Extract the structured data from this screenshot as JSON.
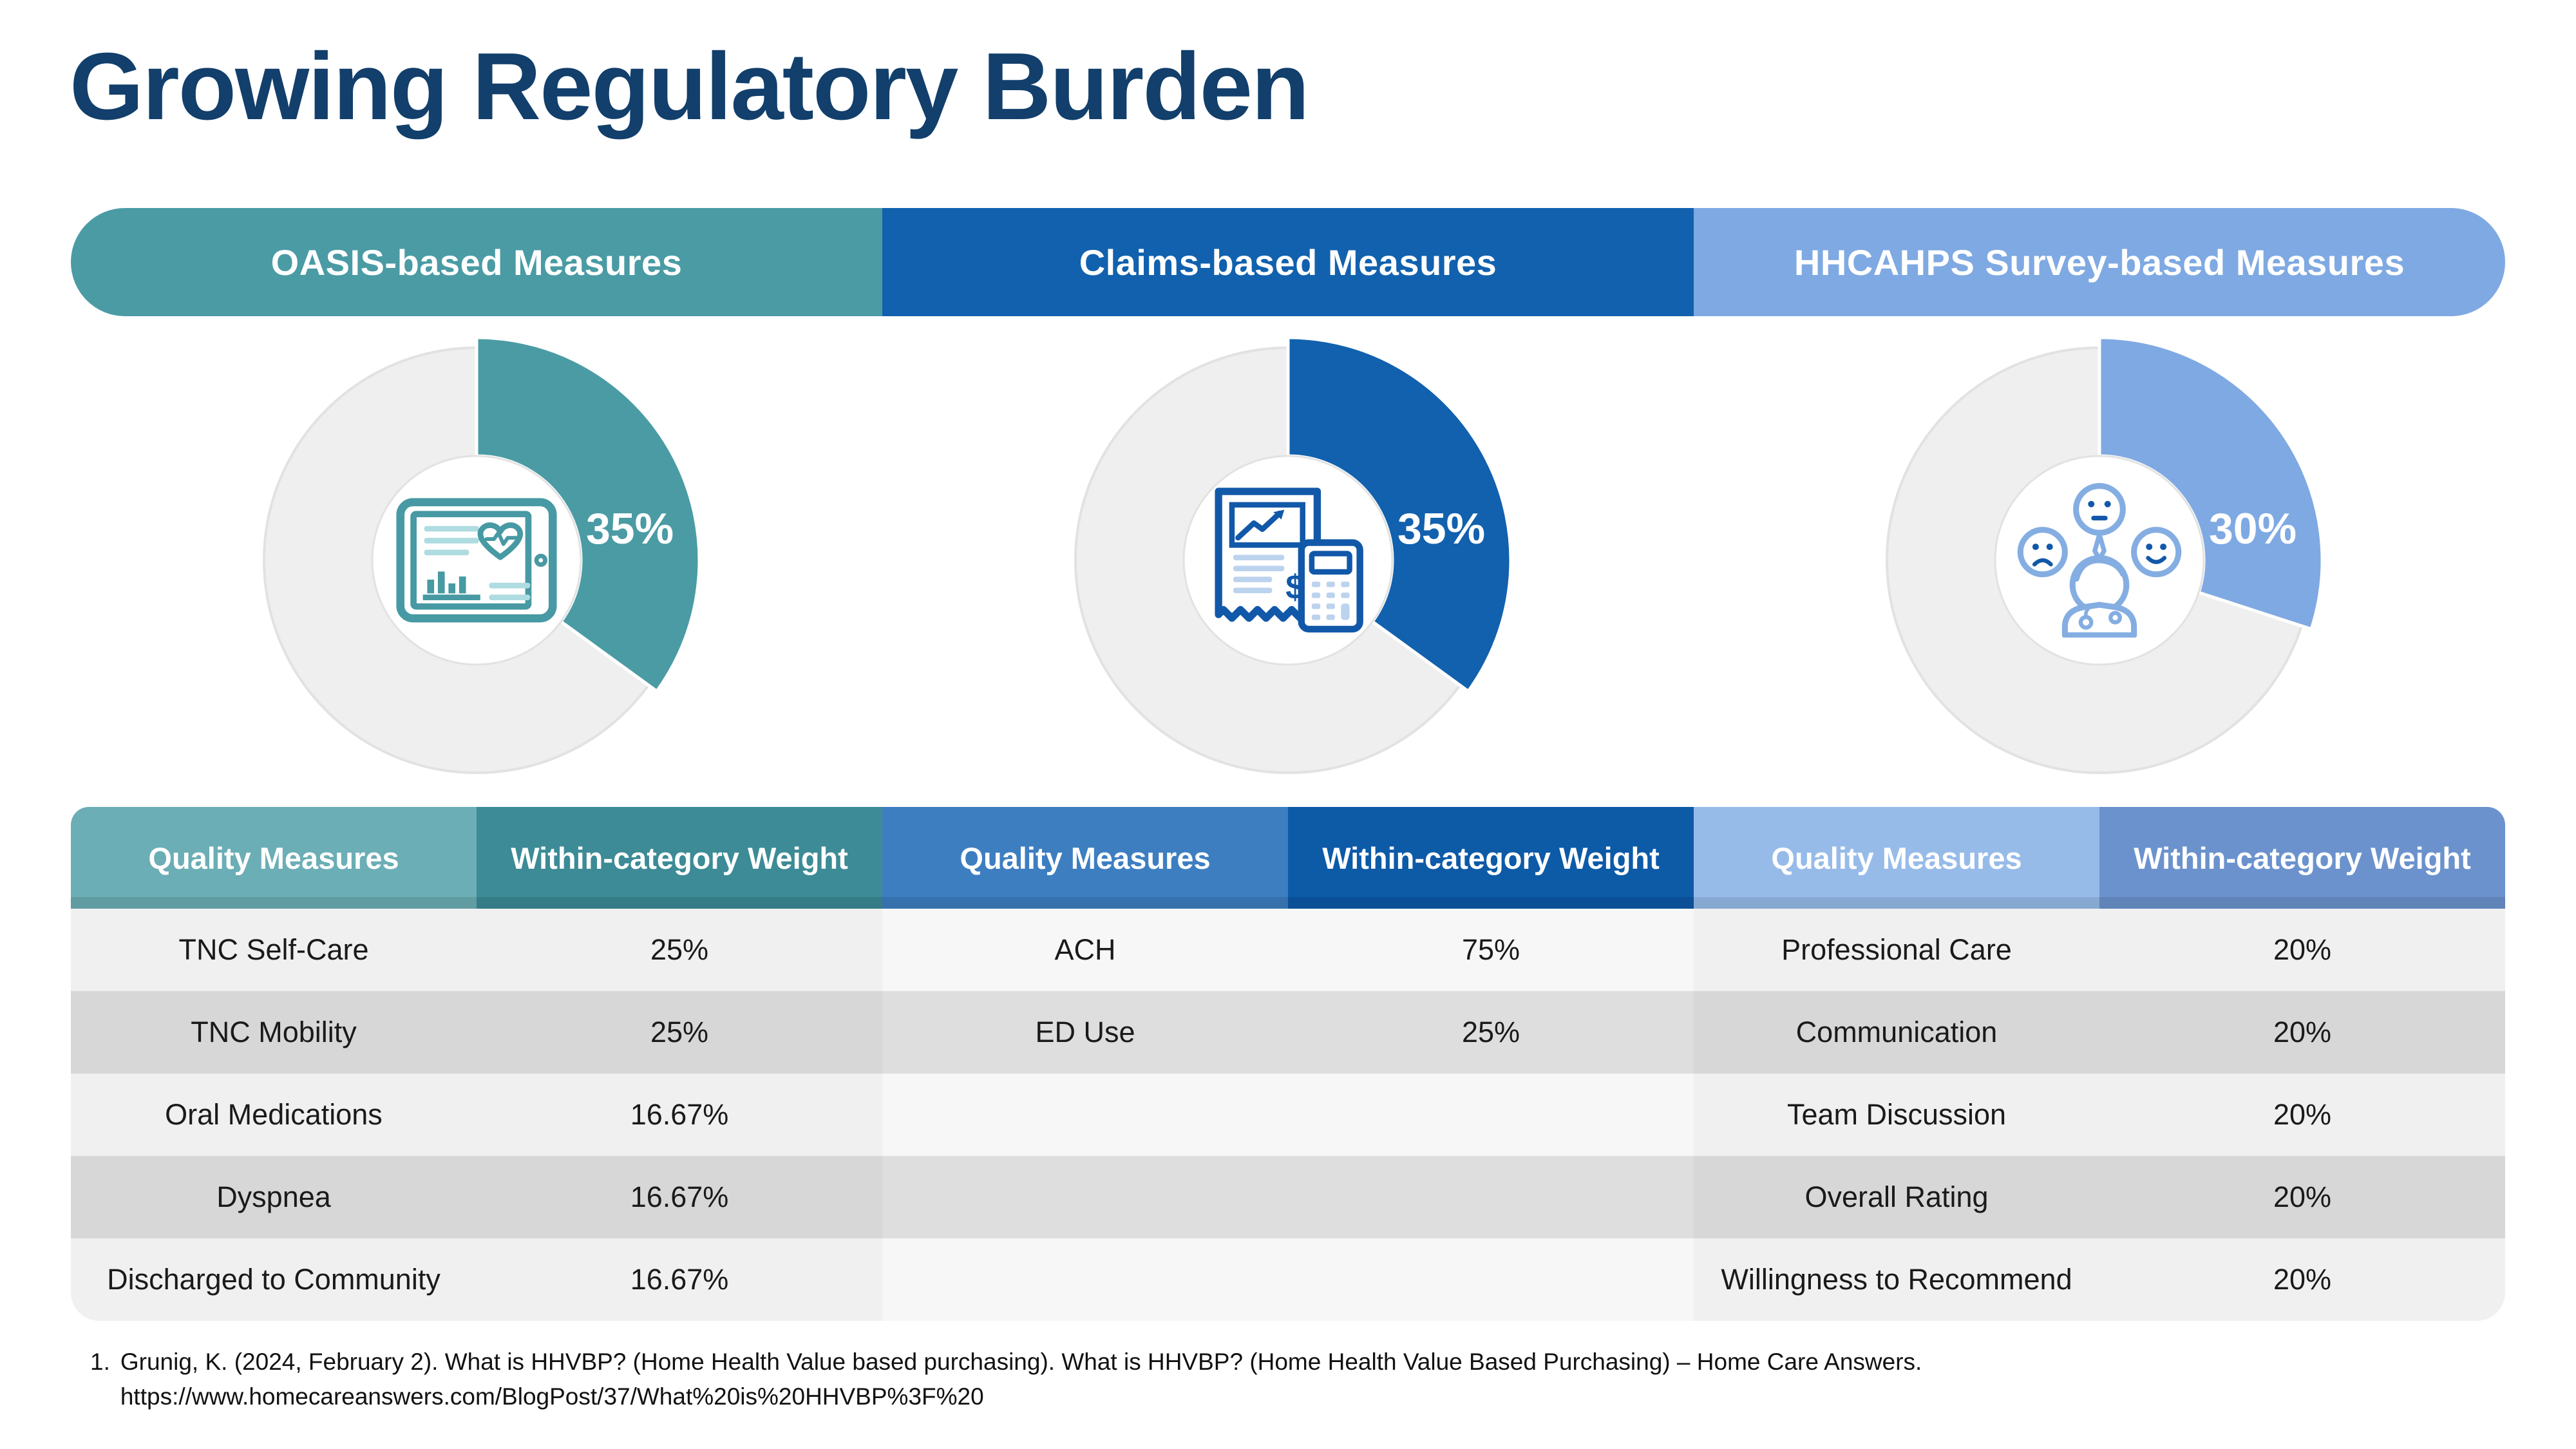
{
  "title": "Growing Regulatory Burden",
  "title_color": "#123F6B",
  "sections": [
    {
      "header": "OASIS-based Measures",
      "icon": "health-dashboard-tablet-icon",
      "percent": 35,
      "percent_label": "35%",
      "colors": {
        "bar": "#4A9BA4",
        "col1": "#6CAEB5",
        "col2": "#3C8B96",
        "accent": "#4A9BA4",
        "row_light": "#F0F0F0",
        "row_dark": "#D7D7D7"
      },
      "columns": [
        "Quality Measures",
        "Within-category Weight"
      ],
      "rows": [
        [
          "TNC Self-Care",
          "25%"
        ],
        [
          "TNC Mobility",
          "25%"
        ],
        [
          "Oral Medications",
          "16.67%"
        ],
        [
          "Dyspnea",
          "16.67%"
        ],
        [
          "Discharged to Community",
          "16.67%"
        ]
      ]
    },
    {
      "header": "Claims-based Measures",
      "icon": "receipt-calculator-icon",
      "percent": 35,
      "percent_label": "35%",
      "colors": {
        "bar": "#1161AE",
        "col1": "#3D7EC1",
        "col2": "#0D5AA7",
        "accent": "#1161AE",
        "row_light": "#F7F7F7",
        "row_dark": "#DEDEDE"
      },
      "columns": [
        "Quality Measures",
        "Within-category Weight"
      ],
      "rows": [
        [
          "ACH",
          "75%"
        ],
        [
          "ED Use",
          "25%"
        ],
        [
          "",
          ""
        ],
        [
          "",
          ""
        ],
        [
          "",
          ""
        ]
      ]
    },
    {
      "header": "HHCAHPS Survey-based Measures",
      "icon": "patient-satisfaction-faces-icon",
      "percent": 30,
      "percent_label": "30%",
      "colors": {
        "bar": "#7FA9E2",
        "col1": "#97BBE9",
        "col2": "#6B92CD",
        "accent": "#7FA9E2",
        "row_light": "#F0F0F0",
        "row_dark": "#D7D7D7"
      },
      "columns": [
        "Quality Measures",
        "Within-category Weight"
      ],
      "rows": [
        [
          "Professional Care",
          "20%"
        ],
        [
          "Communication",
          "20%"
        ],
        [
          "Team Discussion",
          "20%"
        ],
        [
          "Overall Rating",
          "20%"
        ],
        [
          "Willingness to Recommend",
          "20%"
        ]
      ]
    }
  ],
  "donut": {
    "ring_color": "#EFEFEF",
    "ring_border": "#E2E2E2",
    "hole_color": "#FFFFFF"
  },
  "footnote": {
    "marker": "1.",
    "text": "Grunig, K. (2024, February 2). What is HHVBP? (Home Health Value based purchasing). What is HHVBP? (Home Health Value Based Purchasing) – Home Care Answers.",
    "url": "https://www.homecareanswers.com/BlogPost/37/What%20is%20HHVBP%3F%20"
  },
  "chart_data": [
    {
      "type": "pie",
      "donut": true,
      "title": "OASIS-based Measures",
      "categories": [
        "OASIS-based weight",
        "Remaining"
      ],
      "values": [
        35,
        65
      ],
      "label": "35%",
      "color": "#4A9BA4",
      "start_angle_deg": 0,
      "direction": "clockwise",
      "center_icon": "health-dashboard-tablet-icon"
    },
    {
      "type": "pie",
      "donut": true,
      "title": "Claims-based Measures",
      "categories": [
        "Claims-based weight",
        "Remaining"
      ],
      "values": [
        35,
        65
      ],
      "label": "35%",
      "color": "#1161AE",
      "start_angle_deg": 0,
      "direction": "clockwise",
      "center_icon": "receipt-calculator-icon"
    },
    {
      "type": "pie",
      "donut": true,
      "title": "HHCAHPS Survey-based Measures",
      "categories": [
        "HHCAHPS weight",
        "Remaining"
      ],
      "values": [
        30,
        70
      ],
      "label": "30%",
      "color": "#7FA9E2",
      "start_angle_deg": 0,
      "direction": "clockwise",
      "center_icon": "patient-satisfaction-faces-icon"
    },
    {
      "type": "table",
      "title": "OASIS-based Measures",
      "columns": [
        "Quality Measures",
        "Within-category Weight"
      ],
      "rows": [
        [
          "TNC Self-Care",
          "25%"
        ],
        [
          "TNC Mobility",
          "25%"
        ],
        [
          "Oral Medications",
          "16.67%"
        ],
        [
          "Dyspnea",
          "16.67%"
        ],
        [
          "Discharged to Community",
          "16.67%"
        ]
      ]
    },
    {
      "type": "table",
      "title": "Claims-based Measures",
      "columns": [
        "Quality Measures",
        "Within-category Weight"
      ],
      "rows": [
        [
          "ACH",
          "75%"
        ],
        [
          "ED Use",
          "25%"
        ]
      ]
    },
    {
      "type": "table",
      "title": "HHCAHPS Survey-based Measures",
      "columns": [
        "Quality Measures",
        "Within-category Weight"
      ],
      "rows": [
        [
          "Professional Care",
          "20%"
        ],
        [
          "Communication",
          "20%"
        ],
        [
          "Team Discussion",
          "20%"
        ],
        [
          "Overall Rating",
          "20%"
        ],
        [
          "Willingness to Recommend",
          "20%"
        ]
      ]
    }
  ]
}
